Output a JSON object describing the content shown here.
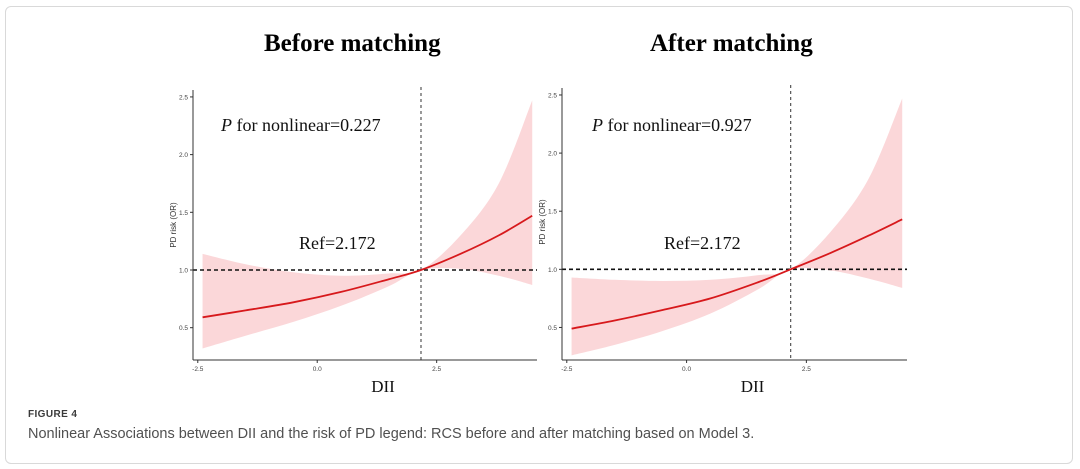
{
  "figure": {
    "label": "FIGURE 4",
    "caption": "Nonlinear Associations between DII and the risk of PD legend: RCS before and after matching based on Model 3."
  },
  "colors": {
    "curve": "#d7191c",
    "band": "#fbd7d9",
    "axis": "#333333",
    "ref_line": "#111111"
  },
  "chart_data": [
    {
      "type": "line",
      "title": "Before matching",
      "xlabel": "DII",
      "ylabel": "PD risk (OR)",
      "xlim": [
        -2.6,
        4.6
      ],
      "ylim": [
        0.22,
        2.56
      ],
      "xticks": [
        -2.5,
        0.0,
        2.5
      ],
      "xtick_labels": [
        "-2.5",
        "0.0",
        "2.5"
      ],
      "yticks": [
        0.5,
        1.0,
        1.5,
        2.0,
        2.5
      ],
      "ytick_labels": [
        "0.5",
        "1.0",
        "1.5",
        "2.0",
        "2.5"
      ],
      "ref_x": 2.172,
      "ref_y": 1.0,
      "annotation_p_italic": "P",
      "annotation_p_rest": " for nonlinear=0.227",
      "annotation_ref": "Ref=2.172",
      "series": [
        {
          "name": "OR",
          "x": [
            -2.4,
            -1.5,
            -0.5,
            0.5,
            1.5,
            2.172,
            3.0,
            3.8,
            4.5
          ],
          "y": [
            0.59,
            0.65,
            0.72,
            0.81,
            0.92,
            1.0,
            1.14,
            1.3,
            1.47
          ],
          "lower": [
            0.32,
            0.43,
            0.55,
            0.69,
            0.86,
            1.0,
            1.01,
            0.95,
            0.87
          ],
          "upper": [
            1.14,
            1.05,
            0.98,
            0.95,
            0.97,
            1.0,
            1.3,
            1.75,
            2.47
          ]
        }
      ]
    },
    {
      "type": "line",
      "title": "After matching",
      "xlabel": "DII",
      "ylabel": "PD risk (OR)",
      "xlim": [
        -2.6,
        4.6
      ],
      "ylim": [
        0.22,
        2.56
      ],
      "xticks": [
        -2.5,
        0.0,
        2.5
      ],
      "xtick_labels": [
        "-2.5",
        "0.0",
        "2.5"
      ],
      "yticks": [
        0.5,
        1.0,
        1.5,
        2.0,
        2.5
      ],
      "ytick_labels": [
        "0.5",
        "1.0",
        "1.5",
        "2.0",
        "2.5"
      ],
      "ref_x": 2.172,
      "ref_y": 1.0,
      "annotation_p_italic": "P",
      "annotation_p_rest": " for nonlinear=0.927",
      "annotation_ref": "Ref=2.172",
      "series": [
        {
          "name": "OR",
          "x": [
            -2.4,
            -1.5,
            -0.5,
            0.5,
            1.5,
            2.172,
            3.0,
            3.8,
            4.5
          ],
          "y": [
            0.49,
            0.56,
            0.65,
            0.75,
            0.89,
            1.0,
            1.14,
            1.29,
            1.43
          ],
          "lower": [
            0.26,
            0.35,
            0.47,
            0.62,
            0.83,
            1.0,
            0.99,
            0.92,
            0.84
          ],
          "upper": [
            0.93,
            0.91,
            0.9,
            0.91,
            0.95,
            1.0,
            1.32,
            1.78,
            2.47
          ]
        }
      ]
    }
  ]
}
